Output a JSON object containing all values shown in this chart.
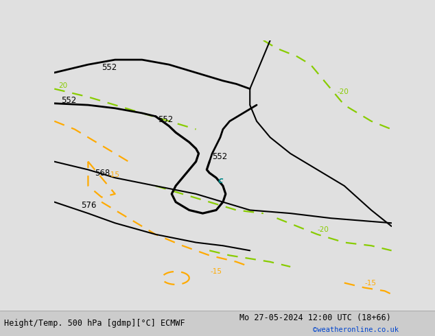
{
  "title_left": "Height/Temp. 500 hPa [gdmp][°C] ECMWF",
  "title_right": "Mo 27-05-2024 12:00 UTC (18+66)",
  "credit": "©weatheronline.co.uk",
  "bg_color": "#e0e0e0",
  "land_color": "#c8e8a0",
  "land_border_color": "#888888",
  "black_contour_color": "#000000",
  "green_dashed_color": "#88cc00",
  "orange_dashed_color": "#ffaa00",
  "cyan_color": "#008888",
  "title_color": "#000000",
  "credit_color": "#0044cc",
  "contour_linewidth": 2.0,
  "dashed_linewidth": 1.6,
  "label_fontsize": 8.5,
  "title_fontsize": 8.5,
  "credit_fontsize": 7.5,
  "xlim": [
    -12.5,
    12.5
  ],
  "ylim": [
    46.5,
    62.5
  ]
}
